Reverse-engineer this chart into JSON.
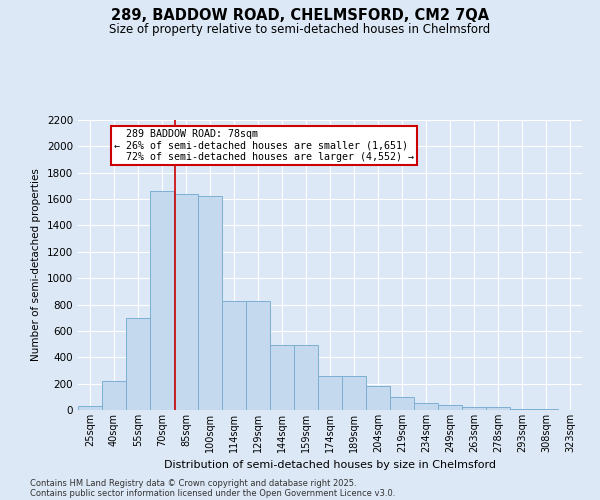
{
  "title": "289, BADDOW ROAD, CHELMSFORD, CM2 7QA",
  "subtitle": "Size of property relative to semi-detached houses in Chelmsford",
  "xlabel": "Distribution of semi-detached houses by size in Chelmsford",
  "ylabel": "Number of semi-detached properties",
  "bar_color": "#c5d9ee",
  "bar_edge_color": "#7bafd4",
  "categories": [
    "25sqm",
    "40sqm",
    "55sqm",
    "70sqm",
    "85sqm",
    "100sqm",
    "114sqm",
    "129sqm",
    "144sqm",
    "159sqm",
    "174sqm",
    "189sqm",
    "204sqm",
    "219sqm",
    "234sqm",
    "249sqm",
    "263sqm",
    "278sqm",
    "293sqm",
    "308sqm",
    "323sqm"
  ],
  "values": [
    30,
    220,
    700,
    1660,
    1640,
    1620,
    830,
    830,
    490,
    490,
    255,
    255,
    185,
    100,
    55,
    40,
    25,
    20,
    8,
    4,
    2
  ],
  "ylim": [
    0,
    2200
  ],
  "yticks": [
    0,
    200,
    400,
    600,
    800,
    1000,
    1200,
    1400,
    1600,
    1800,
    2000,
    2200
  ],
  "property_label": "289 BADDOW ROAD: 78sqm",
  "pct_smaller": 26,
  "pct_larger": 72,
  "count_smaller": 1651,
  "count_larger": 4552,
  "annotation_box_color": "#ffffff",
  "annotation_box_edge": "#cc0000",
  "vline_color": "#cc0000",
  "footer1": "Contains HM Land Registry data © Crown copyright and database right 2025.",
  "footer2": "Contains public sector information licensed under the Open Government Licence v3.0.",
  "background_color": "#dce8f5",
  "grid_color": "#ffffff"
}
